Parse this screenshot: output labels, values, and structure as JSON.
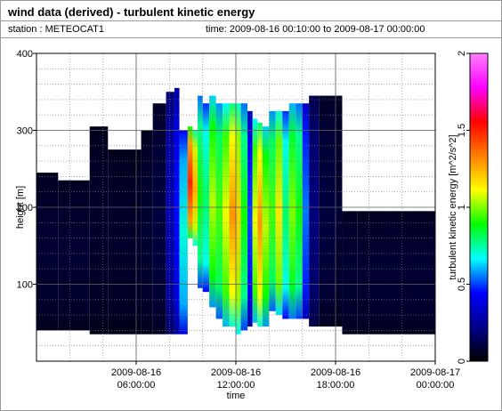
{
  "header": {
    "title": "wind data (derived) - turbulent kinetic energy",
    "station_label": "station : METEOCAT1",
    "time_label": "time: 2009-08-16 00:10:00 to 2009-08-17 00:00:00"
  },
  "chart_data": {
    "type": "heatmap",
    "title": "wind data (derived) - turbulent kinetic energy",
    "xlabel": "time",
    "ylabel": "height [m]",
    "colorbar_label": "turbulent kinetic energy [m^2/s^2]",
    "x_ticks": [
      {
        "hour": 6,
        "line1": "2009-08-16",
        "line2": "06:00:00"
      },
      {
        "hour": 12,
        "line1": "2009-08-16",
        "line2": "12:00:00"
      },
      {
        "hour": 18,
        "line1": "2009-08-16",
        "line2": "18:00:00"
      },
      {
        "hour": 24,
        "line1": "2009-08-17",
        "line2": "00:00:00"
      }
    ],
    "xlim_hours": [
      0,
      24
    ],
    "ylim": [
      0,
      400
    ],
    "y_ticks": [
      100,
      200,
      300,
      400
    ],
    "colorbar_ticks": [
      "0",
      "0.5",
      "1",
      "1.5",
      "2"
    ],
    "colorbar_range": [
      0,
      2
    ],
    "grid": true,
    "colormap": [
      "#000000",
      "#00008b",
      "#0000ff",
      "#00ffff",
      "#00ff00",
      "#ffff00",
      "#ff8000",
      "#ff0000",
      "#ff00ff",
      "#ff80ff"
    ],
    "profile": [
      {
        "start": 0.0,
        "end": 1.3,
        "bottom": 40,
        "top": 245,
        "tke": 0.08
      },
      {
        "start": 1.3,
        "end": 3.2,
        "bottom": 40,
        "top": 235,
        "tke": 0.08
      },
      {
        "start": 3.2,
        "end": 4.3,
        "bottom": 35,
        "top": 305,
        "tke": 0.07
      },
      {
        "start": 4.3,
        "end": 6.3,
        "bottom": 35,
        "top": 275,
        "tke": 0.07
      },
      {
        "start": 6.3,
        "end": 7.0,
        "bottom": 35,
        "top": 300,
        "tke": 0.08
      },
      {
        "start": 7.0,
        "end": 7.8,
        "bottom": 35,
        "top": 335,
        "tke": 0.1
      },
      {
        "start": 7.8,
        "end": 8.3,
        "bottom": 35,
        "top": 350,
        "tke": 0.3
      },
      {
        "start": 8.3,
        "end": 8.6,
        "bottom": 35,
        "top": 355,
        "tke": 0.45
      },
      {
        "start": 8.6,
        "end": 9.1,
        "bottom": 35,
        "top": 300,
        "tke": 0.7
      },
      {
        "start": 9.1,
        "end": 9.4,
        "bottom": 160,
        "top": 305,
        "tke": 1.5
      },
      {
        "start": 9.4,
        "end": 9.7,
        "bottom": 150,
        "top": 300,
        "tke": 1.25
      },
      {
        "start": 9.7,
        "end": 10.0,
        "bottom": 95,
        "top": 345,
        "tke": 0.9
      },
      {
        "start": 10.0,
        "end": 10.4,
        "bottom": 90,
        "top": 335,
        "tke": 0.8
      },
      {
        "start": 10.4,
        "end": 10.8,
        "bottom": 70,
        "top": 345,
        "tke": 1.05
      },
      {
        "start": 10.8,
        "end": 11.2,
        "bottom": 55,
        "top": 335,
        "tke": 0.95
      },
      {
        "start": 11.2,
        "end": 11.6,
        "bottom": 45,
        "top": 335,
        "tke": 1.1
      },
      {
        "start": 11.6,
        "end": 12.0,
        "bottom": 45,
        "top": 335,
        "tke": 1.3
      },
      {
        "start": 12.0,
        "end": 12.3,
        "bottom": 35,
        "top": 335,
        "tke": 1.2
      },
      {
        "start": 12.3,
        "end": 12.7,
        "bottom": 40,
        "top": 335,
        "tke": 0.9
      },
      {
        "start": 12.7,
        "end": 13.0,
        "bottom": 45,
        "top": 325,
        "tke": 0.5
      },
      {
        "start": 13.0,
        "end": 13.3,
        "bottom": 50,
        "top": 315,
        "tke": 1.1
      },
      {
        "start": 13.3,
        "end": 13.6,
        "bottom": 45,
        "top": 310,
        "tke": 1.3
      },
      {
        "start": 13.6,
        "end": 14.0,
        "bottom": 45,
        "top": 305,
        "tke": 1.05
      },
      {
        "start": 14.0,
        "end": 14.4,
        "bottom": 65,
        "top": 325,
        "tke": 0.95
      },
      {
        "start": 14.4,
        "end": 14.8,
        "bottom": 60,
        "top": 325,
        "tke": 1.15
      },
      {
        "start": 14.8,
        "end": 15.2,
        "bottom": 55,
        "top": 325,
        "tke": 0.8
      },
      {
        "start": 15.2,
        "end": 15.6,
        "bottom": 55,
        "top": 335,
        "tke": 1.0
      },
      {
        "start": 15.6,
        "end": 16.0,
        "bottom": 55,
        "top": 335,
        "tke": 0.9
      },
      {
        "start": 16.0,
        "end": 16.4,
        "bottom": 55,
        "top": 335,
        "tke": 0.55
      },
      {
        "start": 16.4,
        "end": 17.0,
        "bottom": 45,
        "top": 345,
        "tke": 0.2
      },
      {
        "start": 17.0,
        "end": 18.0,
        "bottom": 45,
        "top": 345,
        "tke": 0.1
      },
      {
        "start": 18.0,
        "end": 18.4,
        "bottom": 45,
        "top": 345,
        "tke": 0.08
      },
      {
        "start": 18.4,
        "end": 19.3,
        "bottom": 35,
        "top": 195,
        "tke": 0.08
      },
      {
        "start": 19.3,
        "end": 24.0,
        "bottom": 35,
        "top": 195,
        "tke": 0.08
      }
    ]
  }
}
